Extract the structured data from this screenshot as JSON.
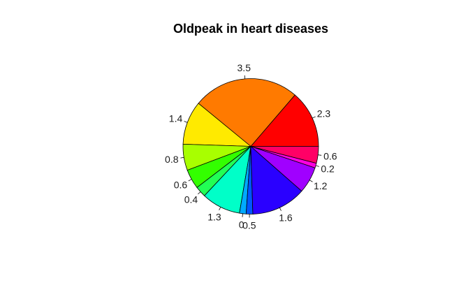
{
  "chart_data": {
    "type": "pie",
    "title": "Oldpeak in heart diseases",
    "direction": "counterclockwise",
    "start_angle_deg": 0,
    "slices": [
      {
        "label": "2.3",
        "value": 14.7,
        "color": "#FF0000"
      },
      {
        "label": "3.5",
        "value": 27.2,
        "color": "#FF7A00"
      },
      {
        "label": "1.4",
        "value": 11.2,
        "color": "#FFEA00"
      },
      {
        "label": "0.8",
        "value": 6.7,
        "color": "#A8FF00"
      },
      {
        "label": "0.6",
        "value": 5.0,
        "color": "#33FF00"
      },
      {
        "label": "0.4",
        "value": 2.8,
        "color": "#22FF55"
      },
      {
        "label": "1.3",
        "value": 10.0,
        "color": "#00FFC8"
      },
      {
        "label": "0",
        "value": 1.7,
        "color": "#00AAFF"
      },
      {
        "label": "0.5",
        "value": 1.7,
        "color": "#0055FF"
      },
      {
        "label": "1.6",
        "value": 14.0,
        "color": "#2A00FF"
      },
      {
        "label": "1.2",
        "value": 6.8,
        "color": "#A000FF"
      },
      {
        "label": "0.2",
        "value": 1.2,
        "color": "#FF00E0"
      },
      {
        "label": "0.6",
        "value": 4.3,
        "color": "#FF0066"
      }
    ]
  }
}
